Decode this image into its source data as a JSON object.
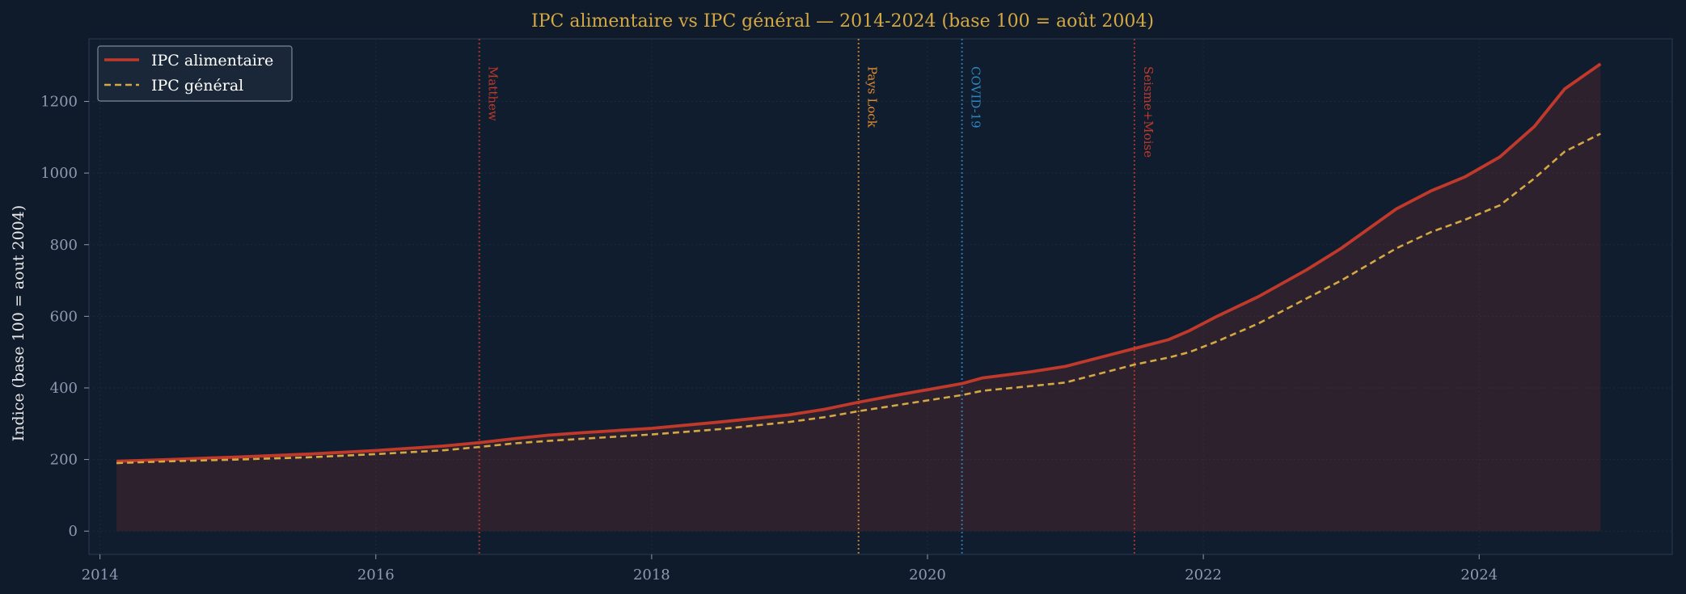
{
  "chart_data": {
    "type": "line",
    "title": "IPC alimentaire vs IPC général — 2014-2024 (base 100 = août 2004)",
    "xlabel": "",
    "ylabel": "Indice (base 100 = aout 2004)",
    "xlim": [
      2013.92,
      2025.4
    ],
    "ylim": [
      -65,
      1375
    ],
    "x_ticks": [
      2014,
      2016,
      2018,
      2020,
      2022,
      2024
    ],
    "y_ticks": [
      0,
      200,
      400,
      600,
      800,
      1000,
      1200
    ],
    "grid": true,
    "legend_position": "top-left",
    "series": [
      {
        "name": "IPC alimentaire",
        "style": "solid",
        "color": "#c0392b",
        "fill": true,
        "x": [
          2014.12,
          2014.5,
          2015.0,
          2015.5,
          2016.0,
          2016.5,
          2016.75,
          2017.0,
          2017.25,
          2017.5,
          2018.0,
          2018.5,
          2019.0,
          2019.25,
          2019.5,
          2019.75,
          2020.0,
          2020.25,
          2020.4,
          2020.75,
          2021.0,
          2021.25,
          2021.5,
          2021.75,
          2021.9,
          2022.1,
          2022.4,
          2022.75,
          2023.0,
          2023.4,
          2023.65,
          2023.9,
          2024.15,
          2024.4,
          2024.62,
          2024.88
        ],
        "y": [
          195,
          200,
          207,
          215,
          225,
          238,
          247,
          258,
          268,
          275,
          287,
          305,
          325,
          340,
          360,
          378,
          395,
          412,
          428,
          445,
          460,
          485,
          510,
          535,
          560,
          600,
          655,
          730,
          790,
          900,
          950,
          990,
          1045,
          1130,
          1235,
          1305
        ]
      },
      {
        "name": "IPC général",
        "style": "dashed",
        "color": "#d4a843",
        "fill": false,
        "x": [
          2014.12,
          2014.5,
          2015.0,
          2015.5,
          2016.0,
          2016.5,
          2016.75,
          2017.0,
          2017.25,
          2017.5,
          2018.0,
          2018.5,
          2019.0,
          2019.25,
          2019.5,
          2019.75,
          2020.0,
          2020.25,
          2020.4,
          2020.75,
          2021.0,
          2021.25,
          2021.5,
          2021.75,
          2021.9,
          2022.1,
          2022.4,
          2022.75,
          2023.0,
          2023.4,
          2023.65,
          2023.9,
          2024.15,
          2024.4,
          2024.62,
          2024.88
        ],
        "y": [
          190,
          195,
          200,
          206,
          215,
          226,
          235,
          245,
          252,
          258,
          270,
          285,
          305,
          318,
          335,
          350,
          365,
          380,
          392,
          405,
          415,
          440,
          465,
          485,
          500,
          530,
          580,
          650,
          700,
          790,
          835,
          870,
          910,
          985,
          1060,
          1110
        ]
      }
    ],
    "events": [
      {
        "label": "Matthew",
        "x": 2016.75,
        "color": "#c0392b"
      },
      {
        "label": "Pays Lock",
        "x": 2019.5,
        "color": "#e08a2e"
      },
      {
        "label": "COVID-19",
        "x": 2020.25,
        "color": "#2e86c1"
      },
      {
        "label": "Seisme+Moise",
        "x": 2021.5,
        "color": "#c0392b"
      }
    ]
  },
  "colors": {
    "background": "#0f1b2b",
    "plot_background": "#101d2e",
    "title": "#d4a843",
    "tick_text": "#8e9aaf",
    "label_text": "#e8e8e8",
    "grid": "#1c2a3c"
  }
}
